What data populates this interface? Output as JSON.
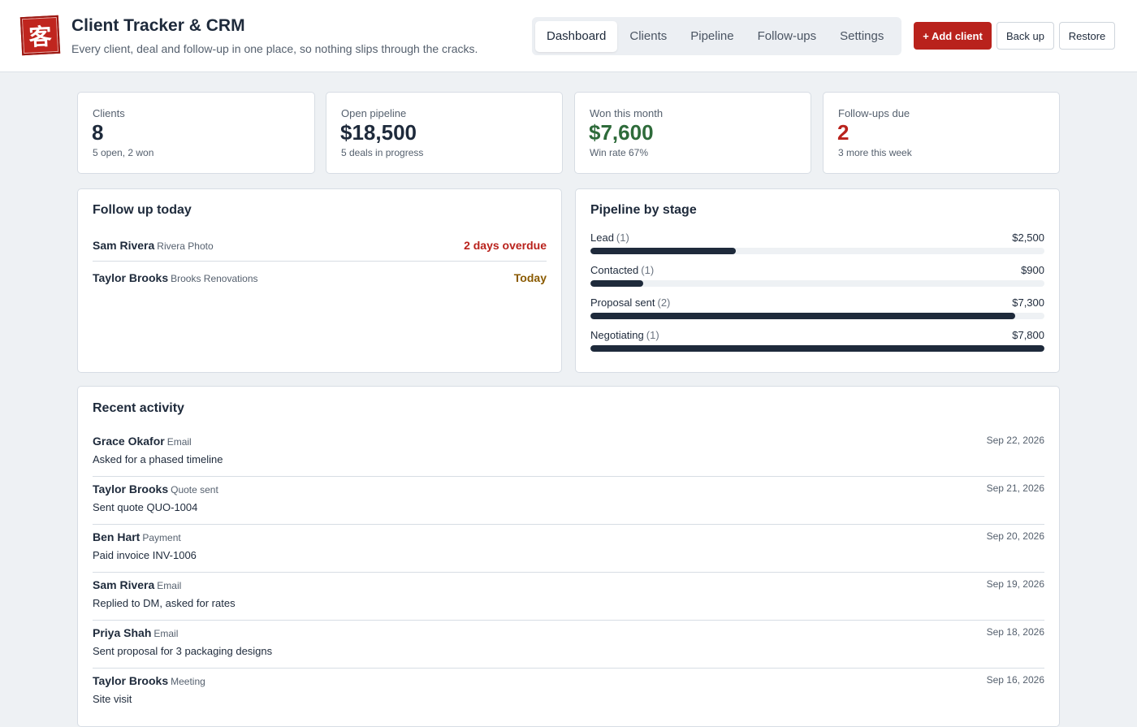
{
  "app": {
    "logo_char": "客",
    "title": "Client Tracker & CRM",
    "subtitle": "Every client, deal and follow-up in one place, so nothing slips through the cracks."
  },
  "nav": {
    "tabs": [
      {
        "label": "Dashboard",
        "active": true
      },
      {
        "label": "Clients",
        "active": false
      },
      {
        "label": "Pipeline",
        "active": false
      },
      {
        "label": "Follow-ups",
        "active": false
      },
      {
        "label": "Settings",
        "active": false
      }
    ]
  },
  "actions": {
    "add_client": "+ Add client",
    "backup": "Back up",
    "restore": "Restore"
  },
  "colors": {
    "accent": "#b9221c",
    "positive": "#2e6b3a",
    "danger": "#b9221c",
    "warning": "#8a5a00",
    "bar": "#1e2a3b"
  },
  "stats": [
    {
      "label": "Clients",
      "value": "8",
      "sub": "5 open, 2 won",
      "tone": "default"
    },
    {
      "label": "Open pipeline",
      "value": "$18,500",
      "sub": "5 deals in progress",
      "tone": "default"
    },
    {
      "label": "Won this month",
      "value": "$7,600",
      "sub": "Win rate 67%",
      "tone": "positive"
    },
    {
      "label": "Follow-ups due",
      "value": "2",
      "sub": "3 more this week",
      "tone": "danger"
    }
  ],
  "follow_up": {
    "title": "Follow up today",
    "items": [
      {
        "name": "Sam Rivera",
        "company": "Rivera Photo",
        "status": "2 days overdue",
        "tone": "danger"
      },
      {
        "name": "Taylor Brooks",
        "company": "Brooks Renovations",
        "status": "Today",
        "tone": "warning"
      }
    ]
  },
  "pipeline": {
    "title": "Pipeline by stage",
    "max_value": 7800,
    "stages": [
      {
        "name": "Lead",
        "count": "(1)",
        "amount": "$2,500",
        "value": 2500
      },
      {
        "name": "Contacted",
        "count": "(1)",
        "amount": "$900",
        "value": 900
      },
      {
        "name": "Proposal sent",
        "count": "(2)",
        "amount": "$7,300",
        "value": 7300
      },
      {
        "name": "Negotiating",
        "count": "(1)",
        "amount": "$7,800",
        "value": 7800
      }
    ]
  },
  "activity": {
    "title": "Recent activity",
    "items": [
      {
        "name": "Grace Okafor",
        "type": "Email",
        "desc": "Asked for a phased timeline",
        "date": "Sep 22, 2026"
      },
      {
        "name": "Taylor Brooks",
        "type": "Quote sent",
        "desc": "Sent quote QUO-1004",
        "date": "Sep 21, 2026"
      },
      {
        "name": "Ben Hart",
        "type": "Payment",
        "desc": "Paid invoice INV-1006",
        "date": "Sep 20, 2026"
      },
      {
        "name": "Sam Rivera",
        "type": "Email",
        "desc": "Replied to DM, asked for rates",
        "date": "Sep 19, 2026"
      },
      {
        "name": "Priya Shah",
        "type": "Email",
        "desc": "Sent proposal for 3 packaging designs",
        "date": "Sep 18, 2026"
      },
      {
        "name": "Taylor Brooks",
        "type": "Meeting",
        "desc": "Site visit",
        "date": "Sep 16, 2026"
      }
    ]
  }
}
